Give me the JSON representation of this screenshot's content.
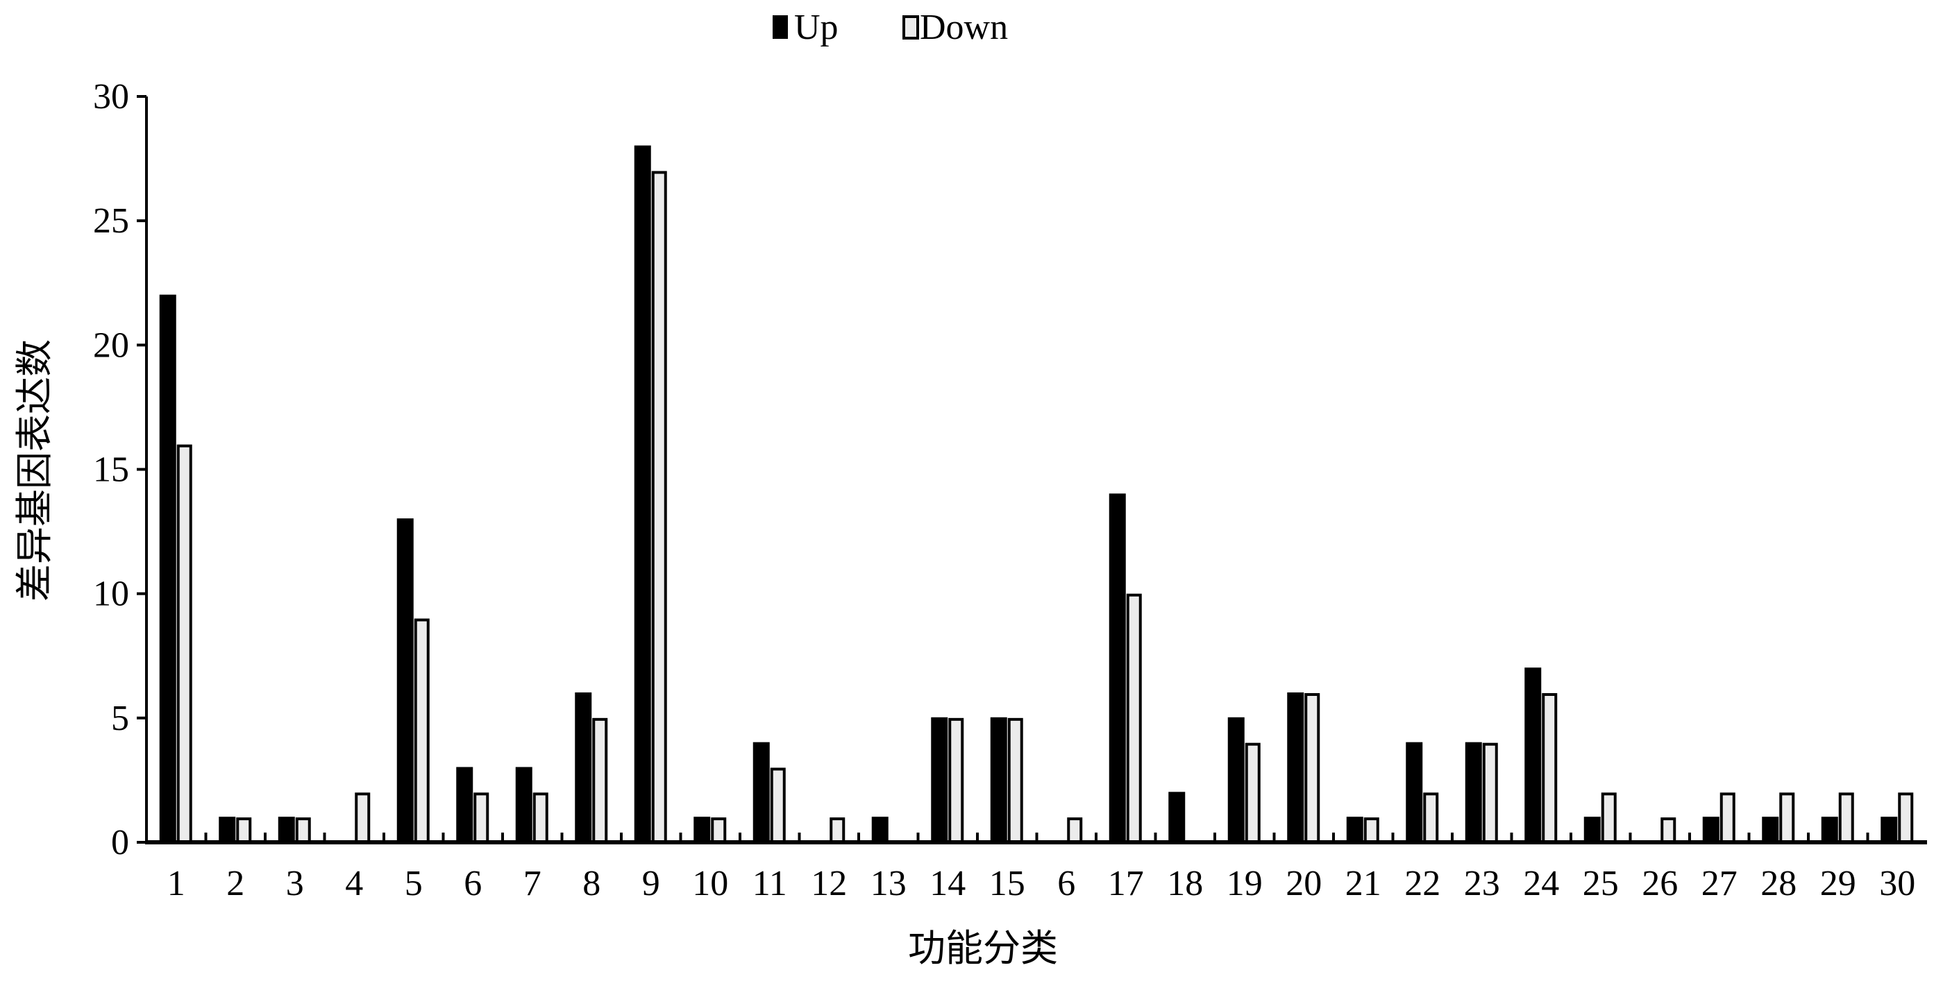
{
  "chart_data": {
    "type": "bar",
    "title": "",
    "xlabel": "功能分类",
    "ylabel": "差异基因表达数",
    "ylim": [
      0,
      30
    ],
    "yticks": [
      0,
      5,
      10,
      15,
      20,
      25,
      30
    ],
    "grid": false,
    "legend_position": "top-center",
    "categories": [
      "1",
      "2",
      "3",
      "4",
      "5",
      "6",
      "7",
      "8",
      "9",
      "10",
      "11",
      "12",
      "13",
      "14",
      "15",
      "6",
      "17",
      "18",
      "19",
      "20",
      "21",
      "22",
      "23",
      "24",
      "25",
      "26",
      "27",
      "28",
      "29",
      "30"
    ],
    "series": [
      {
        "name": "Up",
        "color": "#000000",
        "values": [
          22,
          1,
          1,
          0,
          13,
          3,
          3,
          6,
          28,
          1,
          4,
          0,
          1,
          5,
          5,
          0,
          14,
          2,
          5,
          6,
          1,
          4,
          4,
          7,
          1,
          0,
          1,
          1,
          1,
          1
        ]
      },
      {
        "name": "Down",
        "color": "#ececec",
        "values": [
          16,
          1,
          1,
          2,
          9,
          2,
          2,
          5,
          27,
          1,
          3,
          1,
          0,
          5,
          5,
          1,
          10,
          0,
          4,
          6,
          1,
          2,
          4,
          6,
          2,
          1,
          2,
          2,
          2,
          2
        ]
      }
    ]
  }
}
